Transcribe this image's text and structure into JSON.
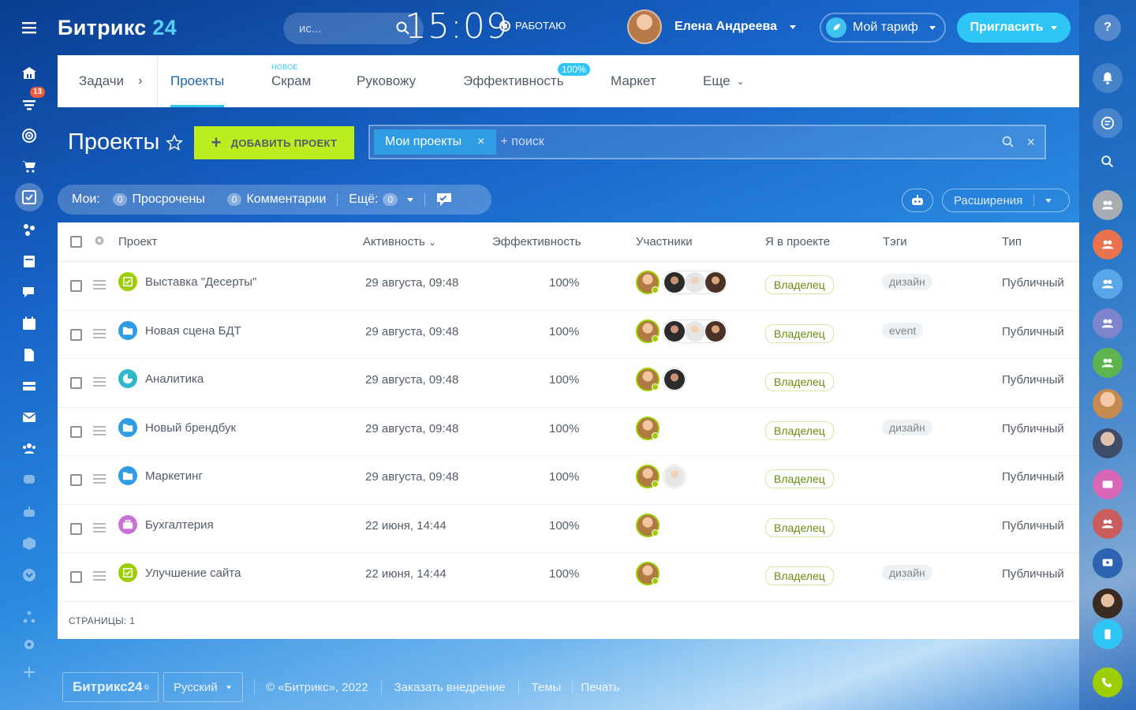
{
  "colors": {
    "accent": "#2fc6f6",
    "add_button": "#bbed21",
    "owner_green": "#9dcf00",
    "badge": "#ef5a39"
  },
  "leftbar": {
    "badge": "13"
  },
  "header": {
    "logo_text": "Битрикс",
    "logo_num": "24",
    "search_text": "ис...",
    "clock": "15:09",
    "work_status": "РАБОТАЮ",
    "user_name": "Елена Андреева",
    "tariff_label": "Мой тариф",
    "invite_label": "Пригласить"
  },
  "tabs": [
    {
      "label": "Задачи"
    },
    {
      "label": "Проекты",
      "active": true
    },
    {
      "label": "Скрам",
      "tag": "НОВОЕ"
    },
    {
      "label": "Руковожу"
    },
    {
      "label": "Эффективность",
      "badge": "100%"
    },
    {
      "label": "Маркет"
    },
    {
      "label": "Еще"
    }
  ],
  "page": {
    "title": "Проекты",
    "add_button": "ДОБАВИТЬ ПРОЕКТ",
    "filter_chip": "Мои проекты",
    "filter_placeholder": "+ поиск"
  },
  "counters": {
    "mine_label": "Мои:",
    "overdue_count": "0",
    "overdue_label": "Просрочены",
    "comments_count": "0",
    "comments_label": "Комментарии",
    "more_label": "Ещё:",
    "more_count": "0",
    "extensions_label": "Расширения"
  },
  "table": {
    "columns": [
      "Проект",
      "Активность",
      "Эффективность",
      "Участники",
      "Я в проекте",
      "Тэги",
      "Тип"
    ],
    "rows": [
      {
        "name": "Выставка \"Десерты\"",
        "activity": "29 августа, 09:48",
        "efficiency": "100%",
        "role": "Владелец",
        "tag": "дизайн",
        "type": "Публичный",
        "icon_color": "#9dcf00",
        "icon": "check-icon",
        "members": [
          "owner",
          "m2",
          "m3",
          "m4"
        ]
      },
      {
        "name": "Новая сцена БДТ",
        "activity": "29 августа, 09:48",
        "efficiency": "100%",
        "role": "Владелец",
        "tag": "event",
        "type": "Публичный",
        "icon_color": "#2f9ce4",
        "icon": "folder-icon",
        "members": [
          "owner",
          "m2",
          "m3",
          "m4"
        ]
      },
      {
        "name": "Аналитика",
        "activity": "29 августа, 09:48",
        "efficiency": "100%",
        "role": "Владелец",
        "tag": "",
        "type": "Публичный",
        "icon_color": "#2fb8c9",
        "icon": "pie-icon",
        "members": [
          "owner",
          "m2"
        ]
      },
      {
        "name": "Новый брендбук",
        "activity": "29 августа, 09:48",
        "efficiency": "100%",
        "role": "Владелец",
        "tag": "дизайн",
        "type": "Публичный",
        "icon_color": "#2f9ce4",
        "icon": "folder-icon",
        "members": [
          "owner"
        ]
      },
      {
        "name": "Маркетинг",
        "activity": "29 августа, 09:48",
        "efficiency": "100%",
        "role": "Владелец",
        "tag": "",
        "type": "Публичный",
        "icon_color": "#2f9ce4",
        "icon": "folder-icon",
        "members": [
          "owner",
          "m3"
        ]
      },
      {
        "name": "Бухгалтерия",
        "activity": "22 июня, 14:44",
        "efficiency": "100%",
        "role": "Владелец",
        "tag": "",
        "type": "Публичный",
        "icon_color": "#c872d6",
        "icon": "briefcase-icon",
        "members": [
          "owner"
        ]
      },
      {
        "name": "Улучшение сайта",
        "activity": "22 июня, 14:44",
        "efficiency": "100%",
        "role": "Владелец",
        "tag": "дизайн",
        "type": "Публичный",
        "icon_color": "#9dcf00",
        "icon": "check-icon",
        "members": [
          "owner"
        ]
      }
    ],
    "pages_label": "СТРАНИЦЫ:",
    "pages_value": "1"
  },
  "footer": {
    "logo": "Битрикс24",
    "language": "Русский",
    "copyright": "© «Битрикс», 2022",
    "order_link": "Заказать внедрение",
    "themes_link": "Темы",
    "print_link": "Печать"
  }
}
